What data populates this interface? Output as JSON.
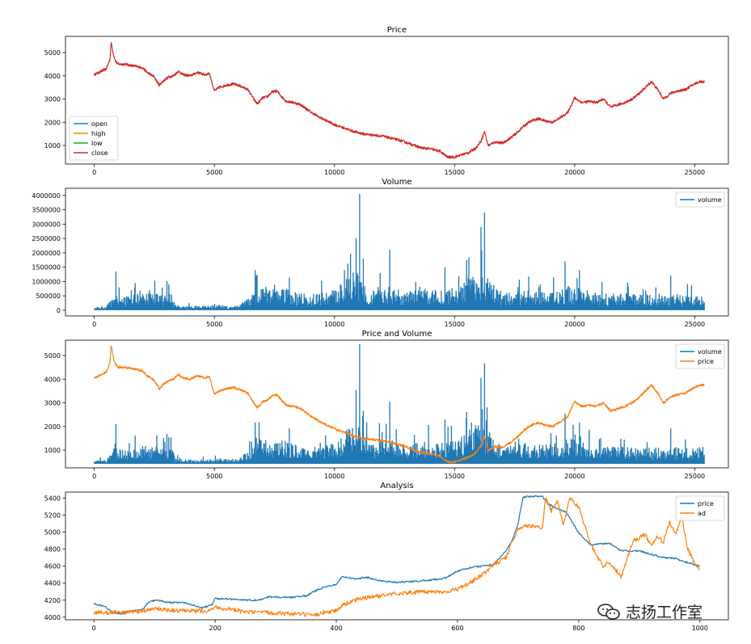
{
  "watermark": {
    "text": "志扬工作室",
    "icon": "wechat-bubbles-icon"
  },
  "colors": {
    "blue": "#1f77b4",
    "orange": "#ff7f0e",
    "green": "#2ca02c",
    "red": "#d62728"
  },
  "chart_data": [
    {
      "id": "price",
      "type": "line",
      "title": "Price",
      "xlim": [
        -1200,
        26400
      ],
      "ylim": [
        200,
        5700
      ],
      "xticks": [
        0,
        5000,
        10000,
        15000,
        20000,
        25000
      ],
      "xtick_labels": [
        "0",
        "5000",
        "10000",
        "15000",
        "20000",
        "25000"
      ],
      "yticks": [
        1000,
        2000,
        3000,
        4000,
        5000
      ],
      "ytick_labels": [
        "1000",
        "2000",
        "3000",
        "4000",
        "5000"
      ],
      "legend": {
        "placement": "lower-left",
        "entries": [
          "open",
          "high",
          "low",
          "close"
        ]
      },
      "series": [
        {
          "name": "open",
          "color": "#1f77b4",
          "ref": "price_path"
        },
        {
          "name": "high",
          "color": "#ff7f0e",
          "ref": "price_path"
        },
        {
          "name": "low",
          "color": "#2ca02c",
          "ref": "price_path"
        },
        {
          "name": "close",
          "color": "#d62728",
          "ref": "price_path",
          "noise": 55
        }
      ]
    },
    {
      "id": "volume",
      "type": "bar",
      "title": "Volume",
      "xlim": [
        -1200,
        26400
      ],
      "ylim": [
        -200000,
        4250000
      ],
      "xticks": [
        0,
        5000,
        10000,
        15000,
        20000,
        25000
      ],
      "xtick_labels": [
        "0",
        "5000",
        "10000",
        "15000",
        "20000",
        "25000"
      ],
      "yticks": [
        0,
        500000,
        1000000,
        1500000,
        2000000,
        2500000,
        3000000,
        3500000,
        4000000
      ],
      "ytick_labels": [
        "0",
        "500000",
        "1000000",
        "1500000",
        "2000000",
        "2500000",
        "3000000",
        "3500000",
        "4000000"
      ],
      "legend": {
        "placement": "upper-right",
        "entries": [
          "volume"
        ]
      },
      "series": [
        {
          "name": "volume",
          "color": "#1f77b4",
          "ref": "volume_path"
        }
      ]
    },
    {
      "id": "price_volume",
      "type": "line",
      "title": "Price and Volume",
      "xlim": [
        -1200,
        26400
      ],
      "ylim": [
        250,
        5650
      ],
      "xticks": [
        0,
        5000,
        10000,
        15000,
        20000,
        25000
      ],
      "xtick_labels": [
        "0",
        "5000",
        "10000",
        "15000",
        "20000",
        "25000"
      ],
      "yticks": [
        1000,
        2000,
        3000,
        4000,
        5000
      ],
      "ytick_labels": [
        "1000",
        "2000",
        "3000",
        "4000",
        "5000"
      ],
      "legend": {
        "placement": "upper-right",
        "entries": [
          "volume",
          "price"
        ]
      },
      "volume_scale": {
        "offset": 420,
        "factor": 0.00125
      },
      "series": [
        {
          "name": "volume",
          "color": "#1f77b4",
          "ref": "volume_path",
          "scaled": true
        },
        {
          "name": "price",
          "color": "#ff7f0e",
          "ref": "price_path",
          "noise": 45
        }
      ]
    },
    {
      "id": "analysis",
      "type": "line",
      "title": "Analysis",
      "xlim": [
        -47,
        1047
      ],
      "ylim": [
        3970,
        5470
      ],
      "xticks": [
        0,
        200,
        400,
        600,
        800,
        1000
      ],
      "xtick_labels": [
        "0",
        "200",
        "400",
        "600",
        "800",
        "1000"
      ],
      "yticks": [
        4000,
        4200,
        4400,
        4600,
        4800,
        5000,
        5200,
        5400
      ],
      "ytick_labels": [
        "4000",
        "4200",
        "4400",
        "4600",
        "4800",
        "5000",
        "5200",
        "5400"
      ],
      "legend": {
        "placement": "upper-right",
        "entries": [
          "price",
          "ad"
        ]
      },
      "series": [
        {
          "name": "price",
          "color": "#1f77b4",
          "x": [
            0,
            10,
            20,
            30,
            45,
            60,
            80,
            90,
            100,
            130,
            150,
            180,
            195,
            200,
            230,
            270,
            290,
            320,
            350,
            370,
            400,
            410,
            430,
            450,
            470,
            500,
            530,
            560,
            580,
            600,
            620,
            640,
            660,
            680,
            690,
            700,
            708,
            720,
            740,
            750,
            760,
            780,
            800,
            820,
            850,
            870,
            900,
            940,
            960,
            980,
            1000
          ],
          "y": [
            4160,
            4140,
            4120,
            4060,
            4040,
            4070,
            4090,
            4180,
            4200,
            4170,
            4170,
            4110,
            4150,
            4220,
            4210,
            4200,
            4240,
            4230,
            4250,
            4330,
            4390,
            4480,
            4450,
            4470,
            4430,
            4410,
            4420,
            4440,
            4460,
            4540,
            4580,
            4600,
            4620,
            4780,
            4900,
            5100,
            5410,
            5420,
            5420,
            5330,
            5290,
            5230,
            4990,
            4850,
            4870,
            4780,
            4780,
            4700,
            4690,
            4640,
            4600
          ],
          "noise": 10
        },
        {
          "name": "ad",
          "color": "#ff7f0e",
          "x": [
            0,
            10,
            20,
            30,
            45,
            60,
            80,
            100,
            130,
            160,
            190,
            200,
            250,
            300,
            350,
            360,
            380,
            400,
            410,
            430,
            450,
            500,
            550,
            580,
            600,
            620,
            640,
            660,
            680,
            690,
            700,
            720,
            740,
            745,
            755,
            765,
            775,
            785,
            800,
            820,
            840,
            850,
            870,
            890,
            910,
            920,
            930,
            940,
            950,
            960,
            970,
            980,
            990,
            1000
          ],
          "y": [
            4050,
            4060,
            4050,
            4060,
            4050,
            4060,
            4070,
            4100,
            4080,
            4070,
            4080,
            4120,
            4060,
            4050,
            4030,
            4010,
            4060,
            4080,
            4140,
            4200,
            4230,
            4280,
            4300,
            4300,
            4330,
            4400,
            4490,
            4620,
            4700,
            4880,
            5050,
            5080,
            5040,
            5400,
            5250,
            5360,
            5080,
            5400,
            5300,
            4850,
            4600,
            4650,
            4480,
            4900,
            4970,
            4830,
            4950,
            4880,
            5120,
            4970,
            5180,
            4800,
            4650,
            4550
          ],
          "noise": 25
        }
      ]
    }
  ],
  "underlying_paths": {
    "price_path": {
      "x": [
        0,
        200,
        500,
        650,
        700,
        800,
        900,
        1000,
        1300,
        1500,
        1800,
        2000,
        2200,
        2500,
        2700,
        2900,
        3100,
        3300,
        3500,
        3700,
        4000,
        4300,
        4600,
        4800,
        4900,
        5000,
        5200,
        5500,
        5800,
        6100,
        6400,
        6700,
        6800,
        7000,
        7200,
        7400,
        7600,
        7800,
        8000,
        8300,
        8600,
        9000,
        9400,
        9700,
        10000,
        10400,
        10800,
        11200,
        11600,
        12000,
        12400,
        12800,
        13200,
        13600,
        14000,
        14400,
        14700,
        15000,
        15300,
        15600,
        15900,
        16100,
        16250,
        16400,
        16700,
        17000,
        17300,
        17600,
        17900,
        18100,
        18300,
        18500,
        18800,
        19100,
        19400,
        19700,
        20000,
        20300,
        20600,
        20900,
        21200,
        21500,
        21800,
        22100,
        22400,
        22700,
        23000,
        23200,
        23500,
        23700,
        24000,
        24300,
        24600,
        24900,
        25200,
        25400
      ],
      "y": [
        4050,
        4150,
        4300,
        4700,
        5450,
        4900,
        4600,
        4500,
        4500,
        4450,
        4400,
        4350,
        4150,
        3950,
        3600,
        3800,
        3950,
        4000,
        4200,
        4050,
        4000,
        4150,
        4050,
        4100,
        3700,
        3350,
        3500,
        3600,
        3650,
        3550,
        3400,
        2900,
        2800,
        3050,
        3100,
        3300,
        3350,
        3100,
        2900,
        2850,
        2750,
        2450,
        2200,
        2050,
        1900,
        1750,
        1600,
        1500,
        1450,
        1400,
        1300,
        1200,
        1050,
        900,
        850,
        750,
        500,
        500,
        600,
        700,
        900,
        1200,
        1600,
        1000,
        1150,
        1100,
        1300,
        1550,
        1850,
        2000,
        2100,
        2150,
        2050,
        2000,
        2200,
        2400,
        3050,
        2850,
        2900,
        2850,
        3000,
        2650,
        2750,
        2850,
        3000,
        3250,
        3550,
        3750,
        3350,
        3000,
        3250,
        3350,
        3400,
        3600,
        3750,
        3750
      ]
    },
    "volume_path": {
      "x": [
        0,
        500,
        800,
        1000,
        1200,
        1600,
        2000,
        2400,
        2800,
        3200,
        3400,
        4000,
        4500,
        5000,
        5500,
        6000,
        6600,
        6900,
        7500,
        8000,
        8500,
        9000,
        9500,
        10000,
        10500,
        10900,
        11200,
        11500,
        12000,
        12400,
        13000,
        13500,
        14000,
        14500,
        15000,
        15500,
        16000,
        16300,
        16700,
        17000,
        17500,
        18000,
        18500,
        19000,
        19300,
        19800,
        20500,
        21000,
        21500,
        22000,
        22500,
        23000,
        23500,
        24000,
        24500,
        25000,
        25400
      ],
      "y": [
        80000,
        100000,
        350000,
        420000,
        320000,
        380000,
        420000,
        420000,
        400000,
        420000,
        120000,
        100000,
        110000,
        130000,
        120000,
        130000,
        400000,
        600000,
        550000,
        550000,
        420000,
        380000,
        430000,
        500000,
        800000,
        1000000,
        700000,
        500000,
        600000,
        550000,
        450000,
        500000,
        550000,
        500000,
        550000,
        750000,
        1000000,
        900000,
        550000,
        450000,
        430000,
        500000,
        450000,
        480000,
        500000,
        600000,
        480000,
        400000,
        400000,
        420000,
        380000,
        400000,
        400000,
        400000,
        380000,
        400000,
        400000
      ]
    },
    "volume_spikes": [
      {
        "x": 900,
        "value": 1350000
      },
      {
        "x": 1700,
        "value": 950000
      },
      {
        "x": 3100,
        "value": 900000
      },
      {
        "x": 6700,
        "value": 1400000
      },
      {
        "x": 10900,
        "value": 2500000
      },
      {
        "x": 11050,
        "value": 4050000
      },
      {
        "x": 11200,
        "value": 1800000
      },
      {
        "x": 12300,
        "value": 2100000
      },
      {
        "x": 14600,
        "value": 1500000
      },
      {
        "x": 15500,
        "value": 1750000
      },
      {
        "x": 16100,
        "value": 2900000
      },
      {
        "x": 16250,
        "value": 3400000
      },
      {
        "x": 19600,
        "value": 1700000
      },
      {
        "x": 20200,
        "value": 1400000
      },
      {
        "x": 24000,
        "value": 1200000
      }
    ]
  }
}
